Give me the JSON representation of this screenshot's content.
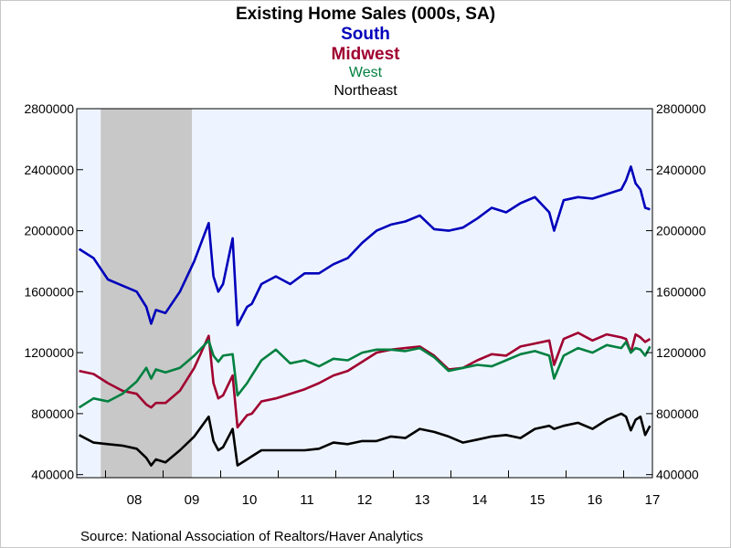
{
  "chart_data": {
    "type": "line",
    "title": "Existing Home Sales (000s, SA)",
    "legend_placement": "top-center",
    "x_tick_labels": [
      "08",
      "09",
      "10",
      "11",
      "12",
      "13",
      "14",
      "15",
      "16",
      "17"
    ],
    "xlim": [
      "2007-07",
      "2017-06"
    ],
    "ylim": [
      380000,
      2800000
    ],
    "y_ticks": [
      400000,
      800000,
      1200000,
      1600000,
      2000000,
      2400000,
      2800000
    ],
    "y_tick_labels": [
      "400000",
      "800000",
      "1200000",
      "1600000",
      "2000000",
      "2400000",
      "2800000"
    ],
    "grid": false,
    "recession_shading": {
      "start": "2007-12",
      "end": "2009-06",
      "color": "#c8c8c8"
    },
    "plot_background": "#eef4ff",
    "source": "Source:  National Association of Realtors/Haver Analytics",
    "series": [
      {
        "name": "South",
        "color": "#0000bb",
        "x": [
          "2007-07",
          "2007-10",
          "2008-01",
          "2008-04",
          "2008-07",
          "2008-09",
          "2008-10",
          "2008-11",
          "2009-01",
          "2009-04",
          "2009-07",
          "2009-10",
          "2009-11",
          "2009-12",
          "2010-01",
          "2010-03",
          "2010-04",
          "2010-06",
          "2010-07",
          "2010-09",
          "2010-12",
          "2011-03",
          "2011-06",
          "2011-09",
          "2011-12",
          "2012-03",
          "2012-06",
          "2012-09",
          "2012-12",
          "2013-03",
          "2013-06",
          "2013-09",
          "2013-12",
          "2014-03",
          "2014-06",
          "2014-09",
          "2014-12",
          "2015-03",
          "2015-06",
          "2015-09",
          "2015-10",
          "2015-12",
          "2016-03",
          "2016-06",
          "2016-09",
          "2016-12",
          "2017-01",
          "2017-02",
          "2017-03",
          "2017-04",
          "2017-05",
          "2017-06"
        ],
        "y": [
          1880000,
          1820000,
          1680000,
          1640000,
          1600000,
          1500000,
          1390000,
          1480000,
          1460000,
          1600000,
          1800000,
          2050000,
          1700000,
          1600000,
          1650000,
          1950000,
          1380000,
          1500000,
          1520000,
          1650000,
          1700000,
          1650000,
          1720000,
          1720000,
          1780000,
          1820000,
          1920000,
          2000000,
          2040000,
          2060000,
          2100000,
          2010000,
          2000000,
          2020000,
          2080000,
          2150000,
          2120000,
          2180000,
          2220000,
          2120000,
          2000000,
          2200000,
          2220000,
          2210000,
          2240000,
          2270000,
          2330000,
          2420000,
          2310000,
          2270000,
          2150000,
          2140000
        ]
      },
      {
        "name": "Midwest",
        "color": "#a00030",
        "x": [
          "2007-07",
          "2007-10",
          "2008-01",
          "2008-04",
          "2008-07",
          "2008-09",
          "2008-10",
          "2008-11",
          "2009-01",
          "2009-04",
          "2009-07",
          "2009-10",
          "2009-11",
          "2009-12",
          "2010-01",
          "2010-03",
          "2010-04",
          "2010-06",
          "2010-07",
          "2010-09",
          "2010-12",
          "2011-03",
          "2011-06",
          "2011-09",
          "2011-12",
          "2012-03",
          "2012-06",
          "2012-09",
          "2012-12",
          "2013-03",
          "2013-06",
          "2013-09",
          "2013-12",
          "2014-03",
          "2014-06",
          "2014-09",
          "2014-12",
          "2015-03",
          "2015-06",
          "2015-09",
          "2015-10",
          "2015-12",
          "2016-03",
          "2016-06",
          "2016-09",
          "2016-12",
          "2017-01",
          "2017-02",
          "2017-03",
          "2017-04",
          "2017-05",
          "2017-06"
        ],
        "y": [
          1080000,
          1060000,
          1000000,
          950000,
          930000,
          860000,
          840000,
          870000,
          870000,
          950000,
          1100000,
          1310000,
          1000000,
          900000,
          920000,
          1050000,
          710000,
          790000,
          800000,
          880000,
          900000,
          930000,
          960000,
          1000000,
          1050000,
          1080000,
          1140000,
          1200000,
          1220000,
          1230000,
          1240000,
          1180000,
          1090000,
          1100000,
          1150000,
          1190000,
          1180000,
          1240000,
          1260000,
          1280000,
          1120000,
          1290000,
          1330000,
          1280000,
          1320000,
          1300000,
          1290000,
          1200000,
          1320000,
          1300000,
          1270000,
          1290000
        ]
      },
      {
        "name": "West",
        "color": "#008040",
        "x": [
          "2007-07",
          "2007-10",
          "2008-01",
          "2008-04",
          "2008-07",
          "2008-09",
          "2008-10",
          "2008-11",
          "2009-01",
          "2009-04",
          "2009-07",
          "2009-10",
          "2009-11",
          "2009-12",
          "2010-01",
          "2010-03",
          "2010-04",
          "2010-06",
          "2010-07",
          "2010-09",
          "2010-12",
          "2011-03",
          "2011-06",
          "2011-09",
          "2011-12",
          "2012-03",
          "2012-06",
          "2012-09",
          "2012-12",
          "2013-03",
          "2013-06",
          "2013-09",
          "2013-12",
          "2014-03",
          "2014-06",
          "2014-09",
          "2014-12",
          "2015-03",
          "2015-06",
          "2015-09",
          "2015-10",
          "2015-12",
          "2016-03",
          "2016-06",
          "2016-09",
          "2016-12",
          "2017-01",
          "2017-02",
          "2017-03",
          "2017-04",
          "2017-05",
          "2017-06"
        ],
        "y": [
          840000,
          900000,
          880000,
          930000,
          1010000,
          1100000,
          1030000,
          1090000,
          1070000,
          1100000,
          1180000,
          1280000,
          1180000,
          1140000,
          1180000,
          1190000,
          920000,
          1000000,
          1050000,
          1150000,
          1220000,
          1130000,
          1150000,
          1110000,
          1160000,
          1150000,
          1200000,
          1220000,
          1220000,
          1210000,
          1230000,
          1170000,
          1080000,
          1100000,
          1120000,
          1110000,
          1150000,
          1190000,
          1210000,
          1180000,
          1030000,
          1180000,
          1230000,
          1200000,
          1250000,
          1230000,
          1270000,
          1200000,
          1230000,
          1220000,
          1180000,
          1240000
        ]
      },
      {
        "name": "Northeast",
        "color": "#000000",
        "x": [
          "2007-07",
          "2007-10",
          "2008-01",
          "2008-04",
          "2008-07",
          "2008-09",
          "2008-10",
          "2008-11",
          "2009-01",
          "2009-04",
          "2009-07",
          "2009-10",
          "2009-11",
          "2009-12",
          "2010-01",
          "2010-03",
          "2010-04",
          "2010-06",
          "2010-07",
          "2010-09",
          "2010-12",
          "2011-03",
          "2011-06",
          "2011-09",
          "2011-12",
          "2012-03",
          "2012-06",
          "2012-09",
          "2012-12",
          "2013-03",
          "2013-06",
          "2013-09",
          "2013-12",
          "2014-03",
          "2014-06",
          "2014-09",
          "2014-12",
          "2015-03",
          "2015-06",
          "2015-09",
          "2015-10",
          "2015-12",
          "2016-03",
          "2016-06",
          "2016-09",
          "2016-12",
          "2017-01",
          "2017-02",
          "2017-03",
          "2017-04",
          "2017-05",
          "2017-06"
        ],
        "y": [
          660000,
          610000,
          600000,
          590000,
          570000,
          510000,
          460000,
          500000,
          480000,
          560000,
          650000,
          780000,
          620000,
          560000,
          580000,
          700000,
          460000,
          500000,
          520000,
          560000,
          560000,
          560000,
          560000,
          570000,
          610000,
          600000,
          620000,
          620000,
          650000,
          640000,
          700000,
          680000,
          650000,
          610000,
          630000,
          650000,
          660000,
          640000,
          700000,
          720000,
          700000,
          720000,
          740000,
          700000,
          760000,
          800000,
          780000,
          690000,
          760000,
          780000,
          660000,
          720000
        ]
      }
    ]
  }
}
